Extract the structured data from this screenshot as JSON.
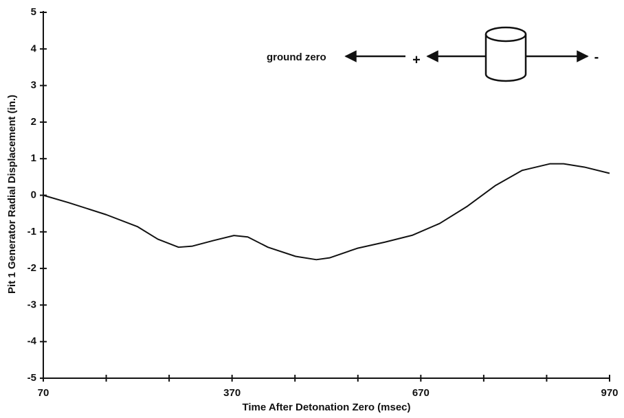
{
  "chart_data": {
    "type": "line",
    "x_label": "Time After Detonation Zero (msec)",
    "y_label": "Pit 1 Generator Radial Displacement (in.)",
    "x": [
      70,
      110,
      170,
      220,
      252,
      285,
      307,
      340,
      373,
      395,
      427,
      471,
      504,
      525,
      569,
      613,
      657,
      700,
      744,
      788,
      831,
      875,
      897,
      930,
      970
    ],
    "series": [
      {
        "color": "#111111",
        "values": [
          0,
          -0.2,
          -0.53,
          -0.86,
          -1.2,
          -1.42,
          -1.39,
          -1.24,
          -1.1,
          -1.14,
          -1.42,
          -1.67,
          -1.76,
          -1.71,
          -1.45,
          -1.28,
          -1.09,
          -0.77,
          -0.3,
          0.26,
          0.68,
          0.86,
          0.86,
          0.77,
          0.6
        ]
      }
    ],
    "xlim": [
      70,
      970
    ],
    "xticks": [
      70,
      370,
      670,
      970
    ],
    "xminorticks": [
      170,
      270,
      470,
      570,
      770,
      870
    ],
    "ylim": [
      -5,
      5
    ],
    "yticks": [
      -5,
      -4,
      -3,
      -2,
      -1,
      0,
      1,
      2,
      3,
      4,
      5
    ],
    "annotations": [
      "ground zero",
      "+",
      "-"
    ]
  }
}
